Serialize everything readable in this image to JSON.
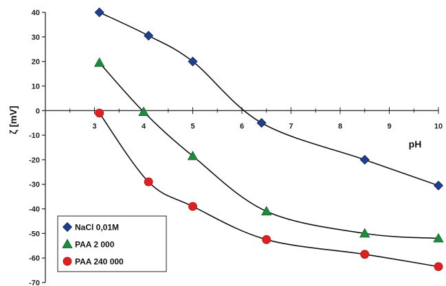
{
  "chart_data": {
    "type": "scatter",
    "xlabel": "pH",
    "ylabel": "ζ [mV]",
    "xlim": [
      2,
      10
    ],
    "ylim": [
      -70,
      40
    ],
    "x_ticks": [
      "3",
      "4",
      "5",
      "6",
      "7",
      "8",
      "9",
      "10"
    ],
    "y_ticks": [
      "40",
      "30",
      "20",
      "10",
      "0",
      "-10",
      "-20",
      "-30",
      "-40",
      "-50",
      "-60",
      "-70"
    ],
    "grid": false,
    "legend_position": "bottom-left",
    "series": [
      {
        "name": "NaCl 0,01M",
        "marker": "diamond",
        "color": "#1f3f8f",
        "points": [
          [
            3.1,
            40
          ],
          [
            4.1,
            30.5
          ],
          [
            5.0,
            20
          ],
          [
            6.4,
            -5
          ],
          [
            8.5,
            -20
          ],
          [
            10.0,
            -30.5
          ]
        ]
      },
      {
        "name": "PAA 2 000",
        "marker": "triangle",
        "color": "#1e8a3c",
        "points": [
          [
            3.1,
            19.5
          ],
          [
            4.0,
            -0.5
          ],
          [
            5.0,
            -18.5
          ],
          [
            6.5,
            -41
          ],
          [
            8.5,
            -50
          ],
          [
            10.0,
            -52
          ]
        ]
      },
      {
        "name": "PAA 240 000",
        "marker": "circle",
        "color": "#e02020",
        "points": [
          [
            3.1,
            -1
          ],
          [
            4.1,
            -29
          ],
          [
            5.0,
            -39
          ],
          [
            6.5,
            -52.5
          ],
          [
            8.5,
            -58.5
          ],
          [
            10.0,
            -63.5
          ]
        ]
      }
    ]
  }
}
